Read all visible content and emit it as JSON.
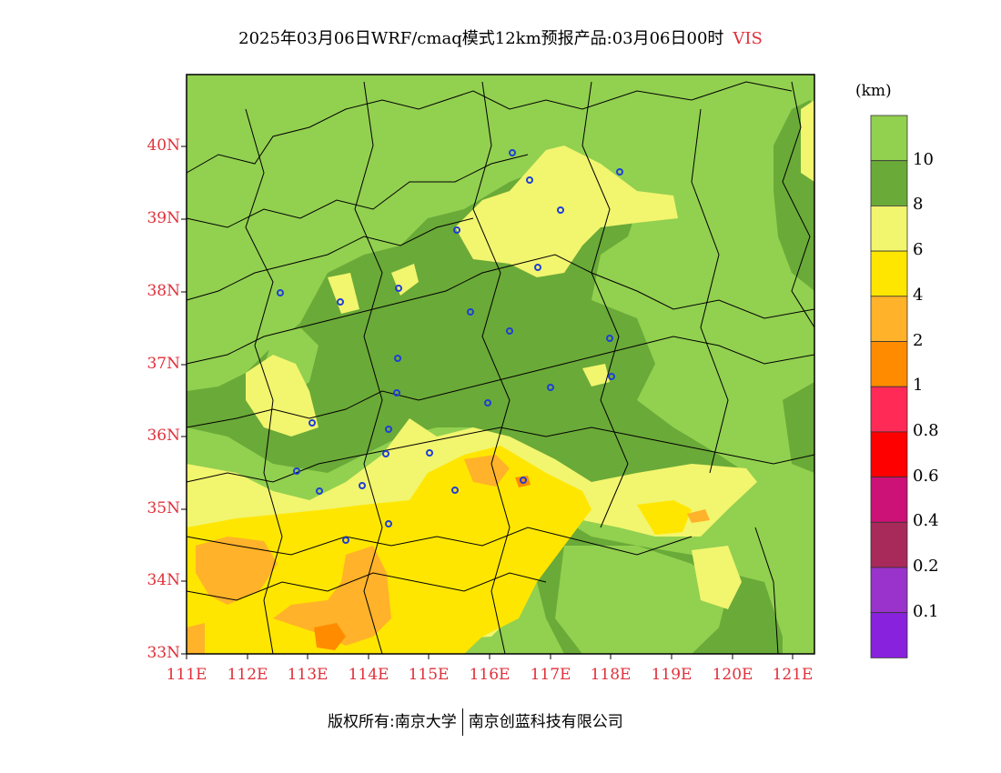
{
  "title": {
    "text": "2025年03月06日WRF/cmaq模式12km预报产品:03月06日00时",
    "variable": "VIS"
  },
  "map": {
    "lat_labels": [
      "40N",
      "39N",
      "38N",
      "37N",
      "36N",
      "35N",
      "34N",
      "33N"
    ],
    "lon_labels": [
      "111E",
      "112E",
      "113E",
      "114E",
      "115E",
      "116E",
      "117E",
      "118E",
      "119E",
      "120E",
      "121E"
    ],
    "lat_range": [
      33,
      41
    ],
    "lon_range": [
      111,
      121.35
    ]
  },
  "legend": {
    "units": "(km)",
    "levels": [
      {
        "label": "10",
        "color": "#92d050"
      },
      {
        "label": "8",
        "color": "#6aaa38"
      },
      {
        "label": "6",
        "color": "#f2f56e"
      },
      {
        "label": "4",
        "color": "#ffe600"
      },
      {
        "label": "2",
        "color": "#ffb22a"
      },
      {
        "label": "1",
        "color": "#ff8c00"
      },
      {
        "label": "0.8",
        "color": "#ff2a55"
      },
      {
        "label": "0.6",
        "color": "#ff0000"
      },
      {
        "label": "0.4",
        "color": "#cc1177"
      },
      {
        "label": "0.2",
        "color": "#a82a5a"
      },
      {
        "label": "0.1",
        "color": "#9933cc"
      },
      {
        "label": "",
        "color": "#8822dd"
      }
    ]
  },
  "footer": {
    "left": "版权所有:南京大学",
    "right": "南京创蓝科技有限公司"
  }
}
